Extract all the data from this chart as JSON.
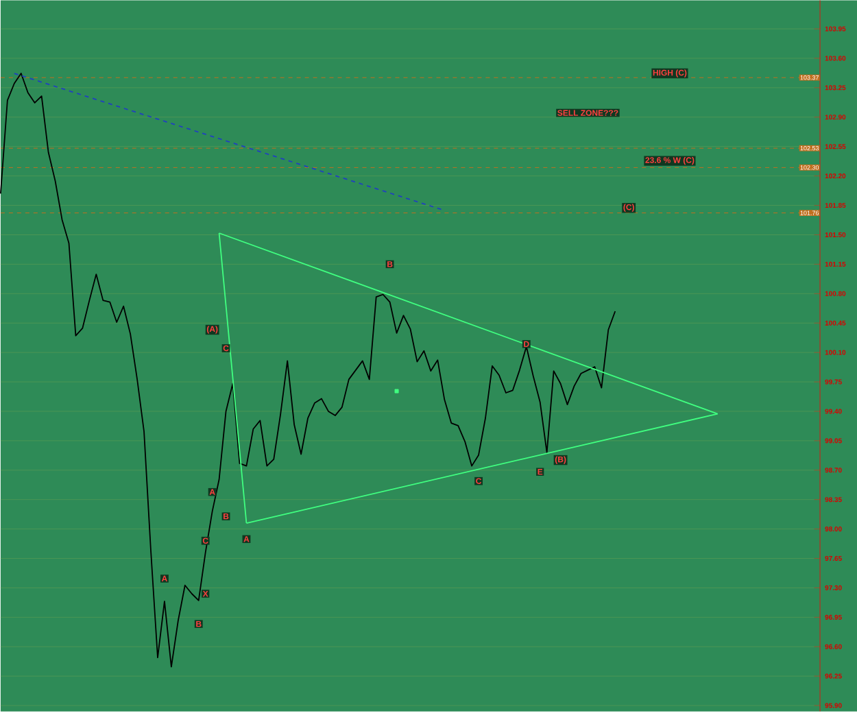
{
  "chart_data": {
    "type": "line",
    "categories": [
      null,
      null,
      null,
      null,
      null,
      null,
      null,
      null,
      null,
      null,
      null,
      null,
      null,
      null,
      null,
      null,
      null,
      null,
      null,
      null,
      null,
      null,
      null,
      null,
      null,
      null,
      null,
      null,
      null,
      null,
      null,
      null,
      null,
      null,
      null,
      null,
      null,
      null,
      null,
      null,
      null,
      null,
      null,
      null,
      null,
      null,
      null,
      null,
      null,
      null,
      null,
      null,
      null,
      null,
      null,
      null,
      null,
      null,
      null,
      null,
      null,
      null,
      null,
      null,
      null,
      null,
      null,
      null,
      null,
      null,
      null,
      null,
      null,
      null,
      null,
      null,
      null,
      null,
      null,
      null,
      null,
      null,
      null,
      null,
      null,
      null,
      null,
      null,
      null,
      null,
      null,
      null,
      null,
      null,
      null,
      null,
      null,
      null,
      null,
      null,
      null,
      null,
      null,
      null,
      null,
      null,
      null,
      null,
      null,
      null,
      null,
      null,
      null,
      null,
      null,
      null,
      null,
      null,
      null,
      null,
      null
    ],
    "ylim": [
      95.83,
      104.29
    ],
    "yticks": [
      {
        "value": 95.9,
        "label": "95.90"
      },
      96.25,
      {
        "value": 96.6,
        "label": "96.60"
      },
      96.95,
      {
        "value": 97.3,
        "label": "97.30"
      },
      97.65,
      {
        "value": 98.0,
        "label": "98.00"
      },
      98.35,
      {
        "value": 98.7,
        "label": "98.70"
      },
      99.05,
      {
        "value": 99.4,
        "label": "99.40"
      },
      99.75,
      {
        "value": 100.1,
        "label": "100.10"
      },
      100.45,
      {
        "value": 100.8,
        "label": "100.80"
      },
      101.15,
      {
        "value": 101.5,
        "label": "101.50"
      },
      101.85,
      {
        "value": 102.2,
        "label": "102.20"
      },
      102.55,
      {
        "value": 102.9,
        "label": "102.90"
      },
      103.25,
      {
        "value": 103.6,
        "label": "103.60"
      },
      103.95
    ],
    "tick_labels": "y",
    "grid": "y",
    "series": [
      {
        "color": "#000000",
        "values": [
          101.99,
          103.1,
          103.3,
          103.42,
          103.19,
          103.07,
          103.15,
          102.48,
          102.14,
          101.68,
          101.4,
          100.3,
          100.39,
          100.72,
          101.03,
          100.72,
          100.7,
          100.46,
          100.65,
          100.32,
          99.78,
          99.16,
          97.74,
          96.47,
          97.14,
          96.36,
          96.91,
          97.33,
          97.23,
          97.15,
          97.72,
          98.21,
          98.59,
          99.4,
          99.73,
          98.78,
          98.75,
          99.19,
          99.29,
          98.75,
          98.83,
          99.37,
          100.0,
          99.24,
          98.89,
          99.32,
          99.5,
          99.55,
          99.4,
          99.35,
          99.45,
          99.78,
          99.89,
          100.0,
          99.78,
          100.76,
          100.79,
          100.7,
          100.33,
          100.54,
          100.38,
          99.99,
          100.12,
          99.88,
          100.01,
          99.54,
          99.26,
          99.23,
          99.04,
          98.75,
          98.88,
          99.32,
          99.94,
          99.83,
          99.62,
          99.65,
          99.89,
          100.17,
          99.82,
          99.51,
          98.91,
          99.88,
          99.73,
          99.48,
          99.7,
          99.85,
          99.89,
          99.93,
          99.68,
          100.37,
          100.59,
          null,
          null,
          null,
          null,
          null,
          null,
          null,
          null,
          null,
          null,
          null,
          null,
          null,
          null,
          null,
          null,
          null,
          null,
          null,
          null,
          null,
          null,
          null,
          null,
          null,
          null,
          null,
          null,
          null,
          null
        ]
      },
      {
        "color": "#2040c0",
        "line_style": "dashed",
        "values": [
          null,
          null,
          103.42,
          null,
          null,
          null,
          null,
          null,
          null,
          null,
          null,
          null,
          null,
          null,
          null,
          null,
          null,
          null,
          null,
          null,
          null,
          null,
          null,
          null,
          null,
          null,
          null,
          null,
          null,
          null,
          null,
          null,
          null,
          null,
          null,
          null,
          null,
          null,
          null,
          null,
          null,
          null,
          null,
          null,
          null,
          null,
          null,
          null,
          null,
          null,
          null,
          null,
          null,
          null,
          null,
          null,
          null,
          null,
          null,
          null,
          null,
          null,
          null,
          null,
          null,
          101.79,
          null,
          null,
          null,
          null,
          null,
          null,
          null,
          null,
          null,
          null,
          null,
          null,
          null,
          null,
          null,
          null,
          null,
          null,
          null,
          null,
          null,
          null,
          null,
          null,
          null,
          null,
          null,
          null,
          null,
          null,
          null,
          null,
          null,
          null,
          null,
          null,
          null,
          null,
          null,
          null,
          null,
          null,
          null,
          null,
          null,
          null,
          null,
          null,
          null,
          null,
          null,
          null,
          null,
          null,
          null
        ]
      },
      {
        "color": "#40ff80",
        "values": [
          null,
          null,
          null,
          null,
          null,
          null,
          null,
          null,
          null,
          null,
          null,
          null,
          null,
          null,
          null,
          null,
          null,
          null,
          null,
          null,
          null,
          null,
          null,
          null,
          null,
          null,
          null,
          null,
          null,
          null,
          null,
          null,
          101.52,
          null,
          null,
          null,
          null,
          null,
          null,
          null,
          null,
          null,
          null,
          null,
          null,
          null,
          null,
          null,
          null,
          null,
          null,
          null,
          null,
          null,
          null,
          null,
          null,
          null,
          null,
          null,
          null,
          null,
          null,
          null,
          null,
          null,
          null,
          null,
          null,
          null,
          null,
          null,
          null,
          null,
          null,
          null,
          null,
          null,
          null,
          null,
          null,
          null,
          null,
          null,
          null,
          null,
          null,
          null,
          null,
          null,
          null,
          null,
          null,
          null,
          null,
          null,
          null,
          null,
          null,
          null,
          null,
          null,
          null,
          null,
          null,
          99.37,
          null,
          null,
          null,
          null,
          null,
          null,
          null,
          null,
          null,
          null,
          null,
          null,
          null,
          null,
          null
        ]
      },
      {
        "color": "#40ff80",
        "values": [
          null,
          null,
          null,
          null,
          null,
          null,
          null,
          null,
          null,
          null,
          null,
          null,
          null,
          null,
          null,
          null,
          null,
          null,
          null,
          null,
          null,
          null,
          null,
          null,
          null,
          null,
          null,
          null,
          null,
          null,
          null,
          null,
          null,
          null,
          null,
          null,
          98.07,
          null,
          null,
          null,
          null,
          null,
          null,
          null,
          null,
          null,
          null,
          null,
          null,
          null,
          null,
          null,
          null,
          null,
          null,
          null,
          null,
          null,
          null,
          null,
          null,
          null,
          null,
          null,
          null,
          null,
          null,
          null,
          null,
          null,
          null,
          null,
          null,
          null,
          null,
          null,
          null,
          null,
          null,
          null,
          null,
          null,
          null,
          null,
          null,
          null,
          null,
          null,
          null,
          null,
          null,
          null,
          null,
          null,
          null,
          null,
          null,
          null,
          null,
          null,
          null,
          null,
          null,
          null,
          null,
          99.37,
          null,
          null,
          null,
          null,
          null,
          null,
          null,
          null,
          null,
          null,
          null,
          null,
          null,
          null,
          null
        ]
      },
      {
        "color": "#40ff80",
        "values": [
          null,
          null,
          null,
          null,
          null,
          null,
          null,
          null,
          null,
          null,
          null,
          null,
          null,
          null,
          null,
          null,
          null,
          null,
          null,
          null,
          null,
          null,
          null,
          null,
          null,
          null,
          null,
          null,
          null,
          null,
          null,
          null,
          101.52,
          null,
          null,
          null,
          98.07,
          null,
          null,
          null,
          null,
          null,
          null,
          null,
          null,
          null,
          null,
          null,
          null,
          null,
          null,
          null,
          null,
          null,
          null,
          null,
          null,
          null,
          null,
          null,
          null,
          null,
          null,
          null,
          null,
          null,
          null,
          null,
          null,
          null,
          null,
          null,
          null,
          null,
          null,
          null,
          null,
          null,
          null,
          null,
          null,
          null,
          null,
          null,
          null,
          null,
          null,
          null,
          null,
          null,
          null,
          null,
          null,
          null,
          null,
          null,
          null,
          null,
          null,
          null,
          null,
          null,
          null,
          null,
          null,
          null,
          null,
          null,
          null,
          null,
          null,
          null,
          null,
          null,
          null,
          null,
          null,
          null,
          null,
          null,
          null
        ]
      },
      {
        "type": "scatter",
        "marker": "square",
        "color": "#40ff80",
        "values": [
          null,
          null,
          null,
          null,
          null,
          null,
          null,
          null,
          null,
          null,
          null,
          null,
          null,
          null,
          null,
          null,
          null,
          null,
          null,
          null,
          null,
          null,
          null,
          null,
          null,
          null,
          null,
          null,
          null,
          null,
          null,
          null,
          null,
          null,
          null,
          null,
          null,
          null,
          null,
          null,
          null,
          null,
          null,
          null,
          null,
          null,
          null,
          null,
          null,
          null,
          null,
          null,
          null,
          null,
          null,
          null,
          null,
          null,
          99.64,
          null,
          null,
          null,
          null,
          null,
          null,
          null,
          null,
          null,
          null,
          null,
          null,
          null,
          null,
          null,
          null,
          null,
          null,
          null,
          null,
          null,
          null,
          null,
          null,
          null,
          null,
          null,
          null,
          null,
          null,
          null,
          null,
          null,
          null,
          null,
          null,
          null,
          null,
          null,
          null,
          null,
          null,
          null,
          null,
          null,
          null,
          null,
          null,
          null,
          null,
          null,
          null,
          null,
          null,
          null,
          null,
          null,
          null,
          null,
          null,
          null,
          null
        ]
      }
    ],
    "ref_lines": [
      {
        "axis": "y",
        "value": 103.37,
        "label": "103.37",
        "color": "#c07020",
        "line_style": "dashed"
      },
      {
        "axis": "y",
        "value": 102.53,
        "label": "102.53",
        "color": "#c07020",
        "line_style": "dashed"
      },
      {
        "axis": "y",
        "value": 102.3,
        "label": "102.30",
        "color": "#c07020",
        "line_style": "dashed"
      },
      {
        "axis": "y",
        "value": 101.76,
        "label": "101.76",
        "color": "#c07020",
        "line_style": "dashed"
      }
    ],
    "annotations": [
      "HIGH (C)",
      "SELL ZONE???",
      "23.6 % W (C)",
      "(C)",
      "(A)",
      "(B)",
      "A",
      "B",
      "C",
      "D",
      "E",
      "C",
      "A",
      "B",
      "C",
      "X",
      "B",
      "A"
    ]
  }
}
